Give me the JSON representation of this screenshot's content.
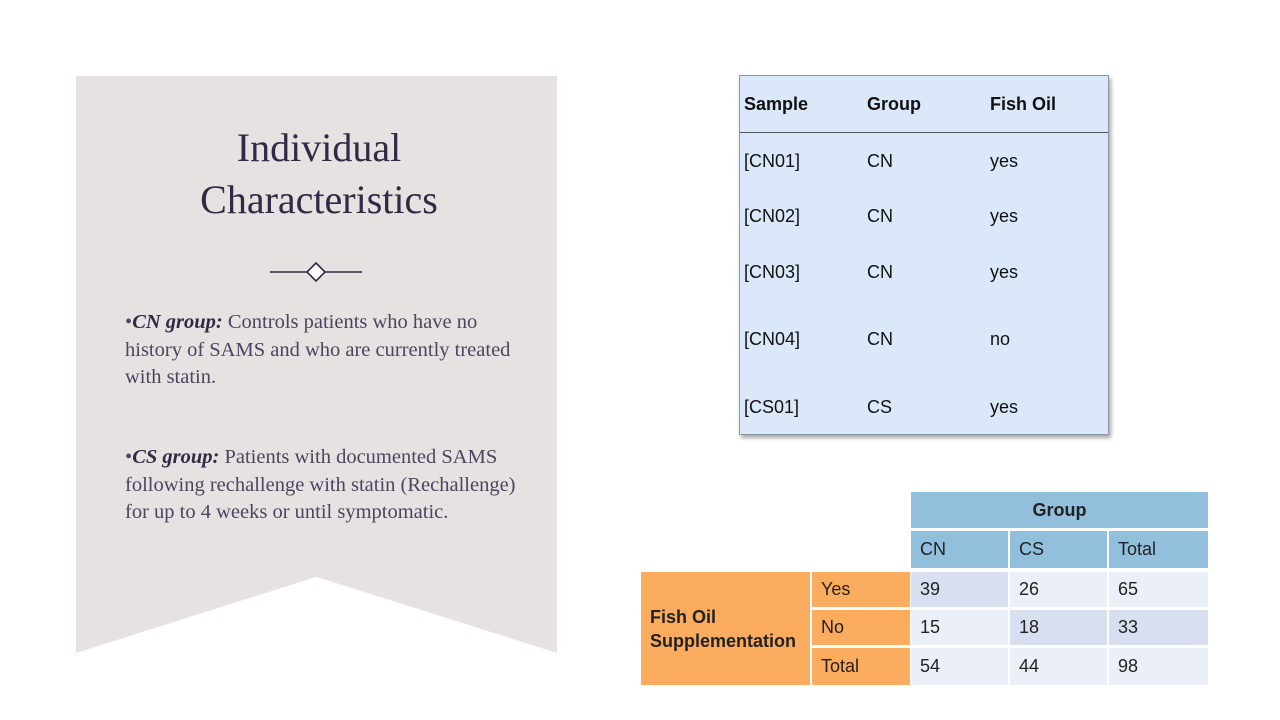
{
  "left_panel": {
    "title_line1": "Individual",
    "title_line2": "Characteristics",
    "bullets": [
      {
        "label": "CN group:",
        "text": " Controls patients who have no history of SAMS and who are currently treated with statin."
      },
      {
        "label": "CS group:",
        "text": " Patients with documented SAMS following rechallenge with statin (Rechallenge) for up to 4 weeks or until symptomatic."
      }
    ],
    "bullet_marker": "•"
  },
  "sample_table": {
    "headers": [
      "Sample",
      "Group",
      "Fish Oil"
    ],
    "rows": [
      [
        "[CN01]",
        "CN",
        "yes"
      ],
      [
        "[CN02]",
        "CN",
        "yes"
      ],
      [
        "[CN03]",
        "CN",
        "yes"
      ],
      [
        "[CN04]",
        "CN",
        "no"
      ],
      [
        "[CS01]",
        "CS",
        "yes"
      ]
    ]
  },
  "crosstab": {
    "group_header": "Group",
    "columns": [
      "CN",
      "CS",
      "Total"
    ],
    "row_variable": "Fish Oil Supplementation",
    "row_variable_line1": "Fish Oil",
    "row_variable_line2": "Supplementation",
    "rows": [
      {
        "label": "Yes",
        "values": [
          "39",
          "26",
          "65"
        ]
      },
      {
        "label": "No",
        "values": [
          "15",
          "18",
          "33"
        ]
      },
      {
        "label": "Total",
        "values": [
          "54",
          "44",
          "98"
        ]
      }
    ],
    "colors": {
      "header_blue": "#92bfdc",
      "row_orange": "#fbac5f",
      "cell_dark": "#d7dff0",
      "cell_light": "#ebeff7"
    }
  }
}
